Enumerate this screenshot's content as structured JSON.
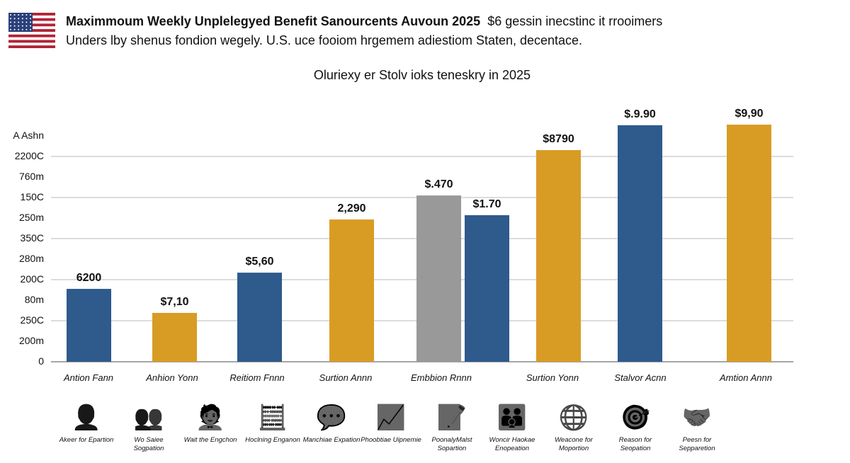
{
  "header": {
    "title": "Maximmoum Weekly Unplelegyed Benefit Sanourcents Auvoun 2025",
    "title_rest": "$6 gessin inecstinc it rrooimers",
    "subtitle": "Unders lby shenus fondion wegely. U.S. uce fooiom hrgemem adiestiom Staten, decentace.",
    "flag_icon": "us-flag-icon"
  },
  "chart_data": {
    "type": "bar",
    "title": "Oluriexy er Stolv ioks teneskry in 2025",
    "ylabel": "A Ashn",
    "ytick_labels": [
      "2200C",
      "760m",
      "150C",
      "250m",
      "350C",
      "280m",
      "200C",
      "80m",
      "250C",
      "200m",
      "0"
    ],
    "grid": true,
    "legend": "none",
    "ylim": [
      0,
      1.2
    ],
    "categories": [
      "Antion Fann",
      "Anhion Yonn",
      "Reitiom Fnnn",
      "Surtion Annn",
      "Embbion Rnnn",
      "Surtion Yonn",
      "Stalvor Acnn",
      "Amtion Annn"
    ],
    "bars": [
      {
        "category_index": 0,
        "value": 0.355,
        "label": "6200",
        "color": "#2e5a8c"
      },
      {
        "category_index": 1,
        "value": 0.238,
        "label": "$7,10",
        "color": "#d89c24"
      },
      {
        "category_index": 2,
        "value": 0.434,
        "label": "$5,60",
        "color": "#2e5a8c"
      },
      {
        "category_index": 3,
        "value": 0.693,
        "label": "2,290",
        "color": "#d89c24"
      },
      {
        "category_index": 4,
        "value": 0.81,
        "label": "$.470",
        "color": "#999999"
      },
      {
        "category_index": 4,
        "value": 0.714,
        "label": "$1.70",
        "color": "#2e5a8c"
      },
      {
        "category_index": 5,
        "value": 1.031,
        "label": "$8790",
        "color": "#d89c24"
      },
      {
        "category_index": 6,
        "value": 1.152,
        "label": "$.9.90",
        "color": "#2e5a8c"
      },
      {
        "category_index": 7,
        "value": 1.155,
        "label": "$9,90",
        "color": "#d89c24"
      }
    ]
  },
  "icons": [
    {
      "icon": "person-icon",
      "caption": "Akeer for Epartion",
      "glyph": "👤"
    },
    {
      "icon": "group-icon",
      "caption": "Wo Saiee Sogpation",
      "glyph": "👥"
    },
    {
      "icon": "meeting-icon",
      "caption": "Wait the Engchon",
      "glyph": "🧑‍💼"
    },
    {
      "icon": "calculator-icon",
      "caption": "Hoclning Enganon",
      "glyph": "🧮"
    },
    {
      "icon": "chat-bubbles-icon",
      "caption": "Manchiae Expation",
      "glyph": "💬"
    },
    {
      "icon": "monitor-chart-icon",
      "caption": "Phoobtiae Uipnemie",
      "glyph": "📈"
    },
    {
      "icon": "document-pen-icon",
      "caption": "PoonalyMalst Sopartion",
      "glyph": "📝"
    },
    {
      "icon": "team-icon",
      "caption": "Woncir Haokae Enopeation",
      "glyph": "👪"
    },
    {
      "icon": "globe-icon",
      "caption": "Weacone for Moportion",
      "glyph": "🌐"
    },
    {
      "icon": "target-icon",
      "caption": "Reason for Seopation",
      "glyph": "🎯"
    },
    {
      "icon": "handshake-icon",
      "caption": "Peesn for Sepparetion",
      "glyph": "🤝"
    }
  ]
}
